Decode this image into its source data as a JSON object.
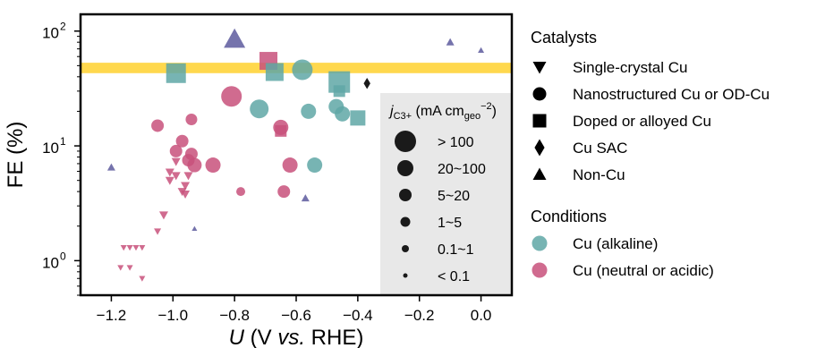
{
  "chart_data": {
    "type": "scatter",
    "xlabel_italic": "U",
    "xlabel_rest": " (V ",
    "xlabel_vs": "vs.",
    "xlabel_end": " RHE)",
    "ylabel": "FE (%)",
    "xlim": [
      -1.3,
      0.1
    ],
    "ylim_log": [
      0.5,
      140
    ],
    "yscale": "log",
    "xticks": [
      -1.2,
      -1.0,
      -0.8,
      -0.6,
      -0.4,
      -0.2,
      0.0
    ],
    "xtick_labels": [
      "−1.2",
      "−1.0",
      "−0.8",
      "−0.6",
      "−0.4",
      "−0.2",
      "0.0"
    ],
    "yticks": [
      1,
      10,
      100
    ],
    "ytick_base": "10",
    "ytick_exponents": [
      "0",
      "1",
      "2"
    ],
    "highlight_band": {
      "ymin": 43,
      "ymax": 53,
      "color": "#FFD84D"
    },
    "colors": {
      "alkaline": "#5FA7A6",
      "neutral_acidic": "#C8517B",
      "nonCu": "#5D5A9E",
      "sac": "#1a1a1a"
    },
    "points": [
      {
        "x": -0.8,
        "y": 85,
        "marker": "triangle-up",
        "size": 24,
        "cond": "nonCu"
      },
      {
        "x": -0.1,
        "y": 80,
        "marker": "triangle-up",
        "size": 9,
        "cond": "nonCu"
      },
      {
        "x": 0.0,
        "y": 68,
        "marker": "triangle-up",
        "size": 7,
        "cond": "nonCu"
      },
      {
        "x": -1.2,
        "y": 6.5,
        "marker": "triangle-up",
        "size": 9,
        "cond": "nonCu"
      },
      {
        "x": -0.93,
        "y": 1.9,
        "marker": "triangle-up",
        "size": 6,
        "cond": "nonCu"
      },
      {
        "x": -0.57,
        "y": 3.5,
        "marker": "triangle-up",
        "size": 9,
        "cond": "nonCu"
      },
      {
        "x": -0.37,
        "y": 35,
        "marker": "diamond",
        "size": 12,
        "cond": "sac"
      },
      {
        "x": -0.99,
        "y": 43,
        "marker": "square",
        "size": 22,
        "cond": "alkaline"
      },
      {
        "x": -0.69,
        "y": 55,
        "marker": "square",
        "size": 20,
        "cond": "neutral_acidic"
      },
      {
        "x": -0.67,
        "y": 44,
        "marker": "square",
        "size": 20,
        "cond": "alkaline"
      },
      {
        "x": -0.46,
        "y": 36,
        "marker": "square",
        "size": 24,
        "cond": "alkaline"
      },
      {
        "x": -0.46,
        "y": 30,
        "marker": "square",
        "size": 13,
        "cond": "alkaline"
      },
      {
        "x": -0.4,
        "y": 17.5,
        "marker": "square",
        "size": 17,
        "cond": "alkaline"
      },
      {
        "x": -0.65,
        "y": 13.5,
        "marker": "square",
        "size": 13,
        "cond": "neutral_acidic"
      },
      {
        "x": -0.58,
        "y": 46,
        "marker": "circle",
        "size": 23,
        "cond": "alkaline"
      },
      {
        "x": -0.72,
        "y": 21,
        "marker": "circle",
        "size": 21,
        "cond": "alkaline"
      },
      {
        "x": -0.56,
        "y": 20,
        "marker": "circle",
        "size": 17,
        "cond": "alkaline"
      },
      {
        "x": -0.47,
        "y": 22,
        "marker": "circle",
        "size": 17,
        "cond": "alkaline"
      },
      {
        "x": -0.45,
        "y": 19,
        "marker": "circle",
        "size": 17,
        "cond": "alkaline"
      },
      {
        "x": -0.54,
        "y": 6.8,
        "marker": "circle",
        "size": 17,
        "cond": "alkaline"
      },
      {
        "x": -0.81,
        "y": 27,
        "marker": "circle",
        "size": 23,
        "cond": "neutral_acidic"
      },
      {
        "x": -0.65,
        "y": 14.5,
        "marker": "circle",
        "size": 17,
        "cond": "neutral_acidic"
      },
      {
        "x": -1.05,
        "y": 15,
        "marker": "circle",
        "size": 14,
        "cond": "neutral_acidic"
      },
      {
        "x": -0.94,
        "y": 17,
        "marker": "circle",
        "size": 13,
        "cond": "neutral_acidic"
      },
      {
        "x": -0.97,
        "y": 11,
        "marker": "circle",
        "size": 14,
        "cond": "neutral_acidic"
      },
      {
        "x": -0.99,
        "y": 9,
        "marker": "circle",
        "size": 14,
        "cond": "neutral_acidic"
      },
      {
        "x": -0.94,
        "y": 8.5,
        "marker": "circle",
        "size": 14,
        "cond": "neutral_acidic"
      },
      {
        "x": -0.95,
        "y": 7.5,
        "marker": "circle",
        "size": 14,
        "cond": "neutral_acidic"
      },
      {
        "x": -0.93,
        "y": 6.8,
        "marker": "circle",
        "size": 16,
        "cond": "neutral_acidic"
      },
      {
        "x": -0.87,
        "y": 6.8,
        "marker": "circle",
        "size": 17,
        "cond": "neutral_acidic"
      },
      {
        "x": -0.62,
        "y": 6.8,
        "marker": "circle",
        "size": 17,
        "cond": "neutral_acidic"
      },
      {
        "x": -0.64,
        "y": 4.0,
        "marker": "circle",
        "size": 14,
        "cond": "neutral_acidic"
      },
      {
        "x": -0.78,
        "y": 4.0,
        "marker": "circle",
        "size": 10,
        "cond": "neutral_acidic"
      },
      {
        "x": -0.99,
        "y": 7.3,
        "marker": "triangle-down",
        "size": 10,
        "cond": "neutral_acidic"
      },
      {
        "x": -1.01,
        "y": 5.9,
        "marker": "triangle-down",
        "size": 10,
        "cond": "neutral_acidic"
      },
      {
        "x": -0.99,
        "y": 5.5,
        "marker": "triangle-down",
        "size": 10,
        "cond": "neutral_acidic"
      },
      {
        "x": -1.01,
        "y": 5.0,
        "marker": "triangle-down",
        "size": 10,
        "cond": "neutral_acidic"
      },
      {
        "x": -0.95,
        "y": 5.5,
        "marker": "triangle-down",
        "size": 10,
        "cond": "neutral_acidic"
      },
      {
        "x": -0.96,
        "y": 4.5,
        "marker": "triangle-down",
        "size": 10,
        "cond": "neutral_acidic"
      },
      {
        "x": -0.97,
        "y": 4.0,
        "marker": "triangle-down",
        "size": 10,
        "cond": "neutral_acidic"
      },
      {
        "x": -0.96,
        "y": 3.8,
        "marker": "triangle-down",
        "size": 10,
        "cond": "neutral_acidic"
      },
      {
        "x": -1.03,
        "y": 2.5,
        "marker": "triangle-down",
        "size": 10,
        "cond": "neutral_acidic"
      },
      {
        "x": -1.05,
        "y": 1.8,
        "marker": "triangle-down",
        "size": 8,
        "cond": "neutral_acidic"
      },
      {
        "x": -1.16,
        "y": 1.3,
        "marker": "triangle-down",
        "size": 7,
        "cond": "neutral_acidic"
      },
      {
        "x": -1.14,
        "y": 1.3,
        "marker": "triangle-down",
        "size": 7,
        "cond": "neutral_acidic"
      },
      {
        "x": -1.12,
        "y": 1.3,
        "marker": "triangle-down",
        "size": 7,
        "cond": "neutral_acidic"
      },
      {
        "x": -1.1,
        "y": 1.3,
        "marker": "triangle-down",
        "size": 7,
        "cond": "neutral_acidic"
      },
      {
        "x": -1.17,
        "y": 0.87,
        "marker": "triangle-down",
        "size": 7,
        "cond": "neutral_acidic"
      },
      {
        "x": -1.14,
        "y": 0.87,
        "marker": "triangle-down",
        "size": 7,
        "cond": "neutral_acidic"
      },
      {
        "x": -1.1,
        "y": 0.7,
        "marker": "triangle-down",
        "size": 7,
        "cond": "neutral_acidic"
      }
    ],
    "size_legend": {
      "title_j": "j",
      "title_sub": "C3+",
      "title_mid": " (mA cm",
      "title_sub2": "geo",
      "title_sup": "−2",
      "title_end": ")",
      "entries": [
        {
          "label": "> 100",
          "size": 24
        },
        {
          "label": "20~100",
          "size": 18
        },
        {
          "label": "5~20",
          "size": 14
        },
        {
          "label": "1~5",
          "size": 11
        },
        {
          "label": "0.1~1",
          "size": 8
        },
        {
          "label": "< 0.1",
          "size": 5
        }
      ]
    },
    "legend_catalysts": {
      "title": "Catalysts",
      "entries": [
        {
          "marker": "triangle-down",
          "label": "Single-crystal Cu"
        },
        {
          "marker": "circle",
          "label": "Nanostructured Cu or OD-Cu"
        },
        {
          "marker": "square",
          "label": "Doped or alloyed Cu"
        },
        {
          "marker": "diamond",
          "label": "Cu SAC"
        },
        {
          "marker": "triangle-up",
          "label": "Non-Cu"
        }
      ]
    },
    "legend_conditions": {
      "title": "Conditions",
      "entries": [
        {
          "color_key": "alkaline",
          "label": "Cu (alkaline)"
        },
        {
          "color_key": "neutral_acidic",
          "label": "Cu (neutral or acidic)"
        }
      ]
    }
  }
}
